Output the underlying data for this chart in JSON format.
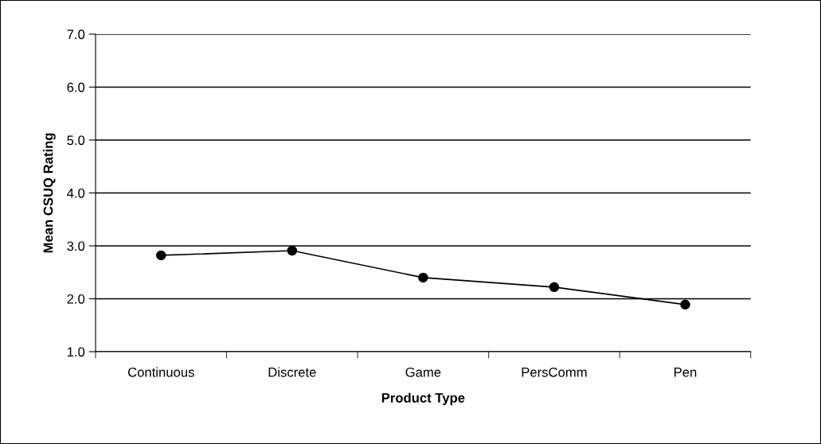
{
  "chart_data": {
    "type": "line",
    "xlabel": "Product Type",
    "ylabel": "Mean CSUQ Rating",
    "categories": [
      "Continuous",
      "Discrete",
      "Game",
      "PersComm",
      "Pen"
    ],
    "series": [
      {
        "color": "#000000",
        "values": [
          2.82,
          2.91,
          2.4,
          2.22,
          1.89
        ]
      }
    ],
    "ylim": [
      1.0,
      7.0
    ],
    "yticks": [
      {
        "value": 1,
        "label": "1.0"
      },
      {
        "value": 2,
        "label": "2.0"
      },
      {
        "value": 3,
        "label": "3.0"
      },
      {
        "value": 4,
        "label": "4.0"
      },
      {
        "value": 5,
        "label": "5.0"
      },
      {
        "value": 6,
        "label": "6.0"
      },
      {
        "value": 7,
        "label": "7.0"
      }
    ],
    "grid": "y",
    "marker": "circle",
    "line_style": "solid"
  }
}
